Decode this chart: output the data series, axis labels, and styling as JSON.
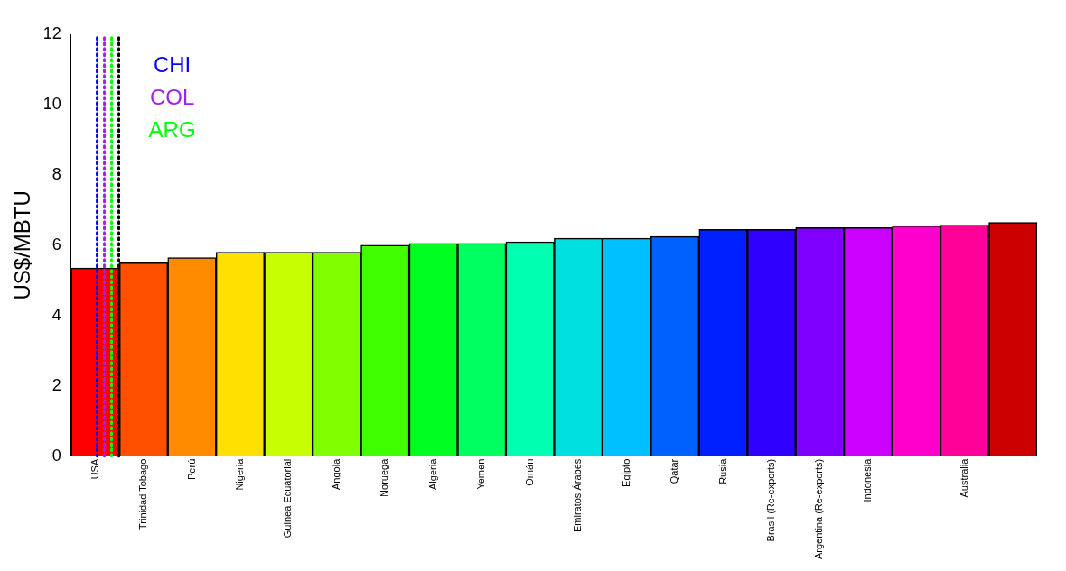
{
  "chart_data": {
    "type": "bar",
    "ylabel": "US$/MBTU",
    "categories": [
      "USA",
      "Trinidad Tobago",
      "Perú",
      "Nigeria",
      "Guinea Ecuatorial",
      "Angola",
      "Noruega",
      "Algeria",
      "Yemen",
      "Omán",
      "Emiratos Árabes",
      "Egipto",
      "Qatar",
      "Rusia",
      "Brasil (Re-exports)",
      "Argentina (Re-exports)",
      "Indonesia",
      null,
      "Australia",
      null
    ],
    "values": [
      5.35,
      5.5,
      5.65,
      5.8,
      5.8,
      5.8,
      6.0,
      6.05,
      6.05,
      6.1,
      6.2,
      6.2,
      6.25,
      6.45,
      6.45,
      6.5,
      6.5,
      6.55,
      6.57,
      6.65
    ],
    "colors": [
      "#ff0000",
      "#ff5000",
      "#ff8c00",
      "#ffe000",
      "#c8ff00",
      "#80ff00",
      "#40ff00",
      "#00ff20",
      "#00ff60",
      "#00ffb0",
      "#00e0e0",
      "#00c0ff",
      "#0060ff",
      "#0020ff",
      "#3000ff",
      "#8000ff",
      "#cc00ff",
      "#ff00cc",
      "#ff0099",
      "#cc0000"
    ],
    "ylim": [
      0,
      12
    ],
    "yticks": [
      0,
      2,
      4,
      6,
      8,
      10,
      12
    ],
    "grid": false,
    "legend": false,
    "ref_lines": [
      {
        "axis": "x",
        "value": "USA",
        "label": "CHI",
        "color": "#0000ff",
        "line_style": "dotted"
      },
      {
        "axis": "x",
        "value": "USA",
        "label": "COL",
        "color": "#a020f0",
        "line_style": "dotted"
      },
      {
        "axis": "x",
        "value": "USA",
        "label": "ARG",
        "color": "#00ff00",
        "line_style": "dotted"
      },
      {
        "axis": "x",
        "value": "USA",
        "label": null,
        "color": "#000000",
        "line_style": "dotted"
      }
    ]
  }
}
